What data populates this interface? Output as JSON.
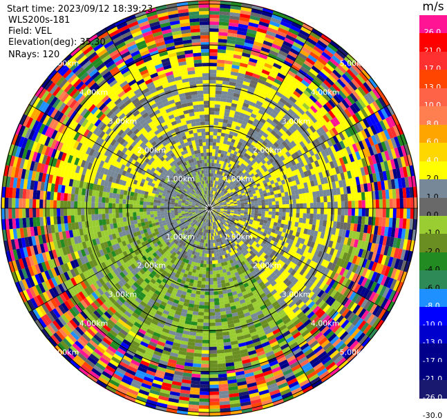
{
  "header": {
    "start_time": "Start time: 2023/09/12 18:39:23",
    "station": "WLS200s-181",
    "field": "Field: VEL",
    "elevation": "Elevation(deg): 35.30",
    "nrays": "NRays: 120"
  },
  "colorbar": {
    "unit": "m/s",
    "levels": [
      {
        "label": "26.0",
        "color": "#ff1493"
      },
      {
        "label": "21.0",
        "color": "#ff0000"
      },
      {
        "label": "17.0",
        "color": "#ff3030"
      },
      {
        "label": "13.0",
        "color": "#ff4500"
      },
      {
        "label": "10.0",
        "color": "#ff6347"
      },
      {
        "label": "8.0",
        "color": "#ff7f50"
      },
      {
        "label": "6.0",
        "color": "#ffa500"
      },
      {
        "label": "4.0",
        "color": "#ffd700"
      },
      {
        "label": "2.0",
        "color": "#ffff00"
      },
      {
        "label": "1.0",
        "color": "#778899"
      },
      {
        "label": "0.0",
        "color": "#696969"
      },
      {
        "label": "-1.0",
        "color": "#9acd32"
      },
      {
        "label": "-2.0",
        "color": "#6b8e23"
      },
      {
        "label": "-4.0",
        "color": "#228b22"
      },
      {
        "label": "-6.0",
        "color": "#2e8b57"
      },
      {
        "label": "-8.0",
        "color": "#1e90ff"
      },
      {
        "label": "-10.0",
        "color": "#0000ff"
      },
      {
        "label": "-13.0",
        "color": "#0000cd"
      },
      {
        "label": "-17.0",
        "color": "#00008b"
      },
      {
        "label": "-21.0",
        "color": "#000080"
      },
      {
        "label": "-26.0",
        "color": "#191970"
      },
      {
        "label": "-30.0",
        "color": "#ffffff"
      }
    ]
  },
  "chart_data": {
    "type": "heatmap",
    "projection": "polar-ppi",
    "nrays": 120,
    "range_rings": [
      {
        "label": "1.00km",
        "km": 1
      },
      {
        "label": "2.00km",
        "km": 2
      },
      {
        "label": "3.00km",
        "km": 3
      },
      {
        "label": "4.00km",
        "km": 4
      },
      {
        "label": "5.00km",
        "km": 5
      }
    ],
    "max_range_km": 5.1,
    "spokes_deg": [
      0,
      30,
      60,
      90,
      120,
      150,
      180,
      210,
      240,
      270,
      300,
      330
    ],
    "velocity_unit": "m/s",
    "velocity_range": [
      -30,
      26
    ]
  }
}
